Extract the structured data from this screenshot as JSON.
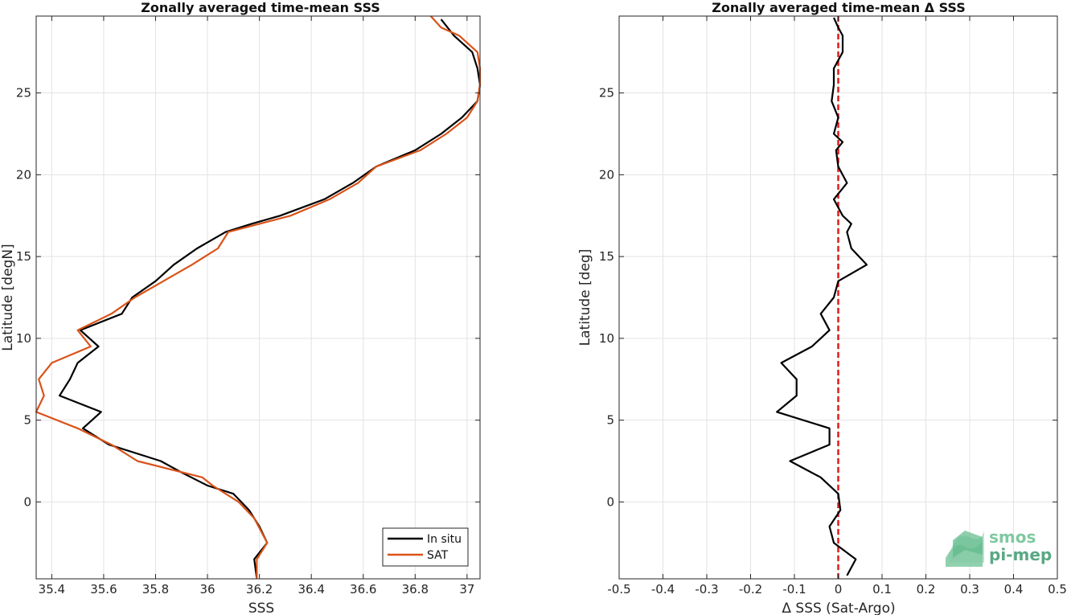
{
  "chart_data": [
    {
      "type": "line",
      "title": "Zonally averaged time-mean SSS",
      "xlabel": "SSS",
      "ylabel": "Latitude [degN]",
      "xlim": [
        35.34,
        37.05
      ],
      "ylim": [
        -4.7,
        29.7
      ],
      "xticks": [
        35.4,
        35.6,
        35.8,
        36,
        36.2,
        36.4,
        36.6,
        36.8,
        37
      ],
      "xtick_labels": [
        "35.4",
        "35.6",
        "35.8",
        "36",
        "36.2",
        "36.4",
        "36.6",
        "36.8",
        "37"
      ],
      "yticks": [
        0,
        5,
        10,
        15,
        20,
        25
      ],
      "ytick_labels": [
        "0",
        "5",
        "10",
        "15",
        "20",
        "25"
      ],
      "grid": true,
      "legend_position": "bottom-right",
      "series": [
        {
          "name": "In situ",
          "color": "#000000",
          "points": [
            [
              36.9,
              29.5
            ],
            [
              36.95,
              28.5
            ],
            [
              37.02,
              27.5
            ],
            [
              37.04,
              26.5
            ],
            [
              37.05,
              25.5
            ],
            [
              37.04,
              24.5
            ],
            [
              36.98,
              23.5
            ],
            [
              36.9,
              22.5
            ],
            [
              36.8,
              21.5
            ],
            [
              36.65,
              20.5
            ],
            [
              36.56,
              19.5
            ],
            [
              36.45,
              18.5
            ],
            [
              36.28,
              17.5
            ],
            [
              36.17,
              17.0
            ],
            [
              36.07,
              16.5
            ],
            [
              35.96,
              15.5
            ],
            [
              35.87,
              14.5
            ],
            [
              35.8,
              13.5
            ],
            [
              35.71,
              12.5
            ],
            [
              35.67,
              11.5
            ],
            [
              35.51,
              10.5
            ],
            [
              35.58,
              9.5
            ],
            [
              35.5,
              8.5
            ],
            [
              35.47,
              7.5
            ],
            [
              35.43,
              6.5
            ],
            [
              35.59,
              5.5
            ],
            [
              35.52,
              4.5
            ],
            [
              35.62,
              3.5
            ],
            [
              35.82,
              2.5
            ],
            [
              35.9,
              1.8
            ],
            [
              36.0,
              1.0
            ],
            [
              36.1,
              0.5
            ],
            [
              36.16,
              -0.5
            ],
            [
              36.2,
              -1.5
            ],
            [
              36.23,
              -2.5
            ],
            [
              36.18,
              -3.5
            ],
            [
              36.19,
              -4.7
            ]
          ]
        },
        {
          "name": "SAT",
          "color": "#D95319",
          "points": [
            [
              36.86,
              29.8
            ],
            [
              36.9,
              29.0
            ],
            [
              36.97,
              28.5
            ],
            [
              37.04,
              27.5
            ],
            [
              37.05,
              26.5
            ],
            [
              37.05,
              25.5
            ],
            [
              37.04,
              24.5
            ],
            [
              37.0,
              23.5
            ],
            [
              36.92,
              22.5
            ],
            [
              36.82,
              21.5
            ],
            [
              36.65,
              20.5
            ],
            [
              36.58,
              19.5
            ],
            [
              36.47,
              18.5
            ],
            [
              36.32,
              17.5
            ],
            [
              36.2,
              17.0
            ],
            [
              36.08,
              16.5
            ],
            [
              36.04,
              15.5
            ],
            [
              35.94,
              14.5
            ],
            [
              35.83,
              13.5
            ],
            [
              35.72,
              12.5
            ],
            [
              35.63,
              11.5
            ],
            [
              35.5,
              10.5
            ],
            [
              35.55,
              9.5
            ],
            [
              35.4,
              8.5
            ],
            [
              35.35,
              7.5
            ],
            [
              35.37,
              6.5
            ],
            [
              35.34,
              5.5
            ],
            [
              35.5,
              4.5
            ],
            [
              35.63,
              3.5
            ],
            [
              35.73,
              2.5
            ],
            [
              35.98,
              1.5
            ],
            [
              36.02,
              1.0
            ],
            [
              36.12,
              0.0
            ],
            [
              36.18,
              -1.0
            ],
            [
              36.23,
              -2.5
            ],
            [
              36.19,
              -3.5
            ],
            [
              36.19,
              -4.7
            ]
          ]
        }
      ]
    },
    {
      "type": "line",
      "title": "Zonally averaged time-mean Δ SSS",
      "xlabel": "Δ SSS (Sat-Argo)",
      "ylabel": "Latitude [deg]",
      "xlim": [
        -0.5,
        0.5
      ],
      "ylim": [
        -4.7,
        29.7
      ],
      "xticks": [
        -0.5,
        -0.4,
        -0.3,
        -0.2,
        -0.1,
        0,
        0.1,
        0.2,
        0.3,
        0.4,
        0.5
      ],
      "xtick_labels": [
        "-0.5",
        "-0.4",
        "-0.3",
        "-0.2",
        "-0.1",
        "0",
        "0.1",
        "0.2",
        "0.3",
        "0.4",
        "0.5"
      ],
      "yticks": [
        0,
        5,
        10,
        15,
        20,
        25
      ],
      "ytick_labels": [
        "0",
        "5",
        "10",
        "15",
        "20",
        "25"
      ],
      "grid": true,
      "reference_line": {
        "x": 0,
        "color": "#E31A1C",
        "style": "dashed"
      },
      "series": [
        {
          "color": "#000000",
          "points": [
            [
              -0.01,
              29.6
            ],
            [
              0.0,
              29.0
            ],
            [
              0.01,
              28.5
            ],
            [
              0.01,
              27.5
            ],
            [
              -0.01,
              26.5
            ],
            [
              -0.01,
              25.5
            ],
            [
              -0.015,
              24.5
            ],
            [
              0.0,
              23.5
            ],
            [
              -0.01,
              22.5
            ],
            [
              0.01,
              22.0
            ],
            [
              -0.005,
              21.5
            ],
            [
              0.0,
              20.5
            ],
            [
              0.02,
              19.5
            ],
            [
              -0.01,
              18.5
            ],
            [
              0.01,
              17.5
            ],
            [
              0.03,
              17.0
            ],
            [
              0.02,
              16.5
            ],
            [
              0.03,
              15.5
            ],
            [
              0.065,
              14.5
            ],
            [
              0.0,
              13.5
            ],
            [
              -0.01,
              12.5
            ],
            [
              -0.04,
              11.5
            ],
            [
              -0.02,
              10.5
            ],
            [
              -0.06,
              9.5
            ],
            [
              -0.13,
              8.5
            ],
            [
              -0.095,
              7.5
            ],
            [
              -0.095,
              6.5
            ],
            [
              -0.14,
              5.5
            ],
            [
              -0.02,
              4.5
            ],
            [
              -0.02,
              3.5
            ],
            [
              -0.11,
              2.5
            ],
            [
              -0.04,
              1.5
            ],
            [
              0.0,
              0.5
            ],
            [
              0.005,
              -0.5
            ],
            [
              -0.02,
              -1.5
            ],
            [
              -0.01,
              -2.5
            ],
            [
              0.04,
              -3.5
            ],
            [
              0.02,
              -4.5
            ]
          ]
        }
      ]
    }
  ],
  "legend": {
    "items": [
      "In situ",
      "SAT"
    ]
  },
  "logo": {
    "line1": "smos",
    "line2": "pi-mep"
  }
}
